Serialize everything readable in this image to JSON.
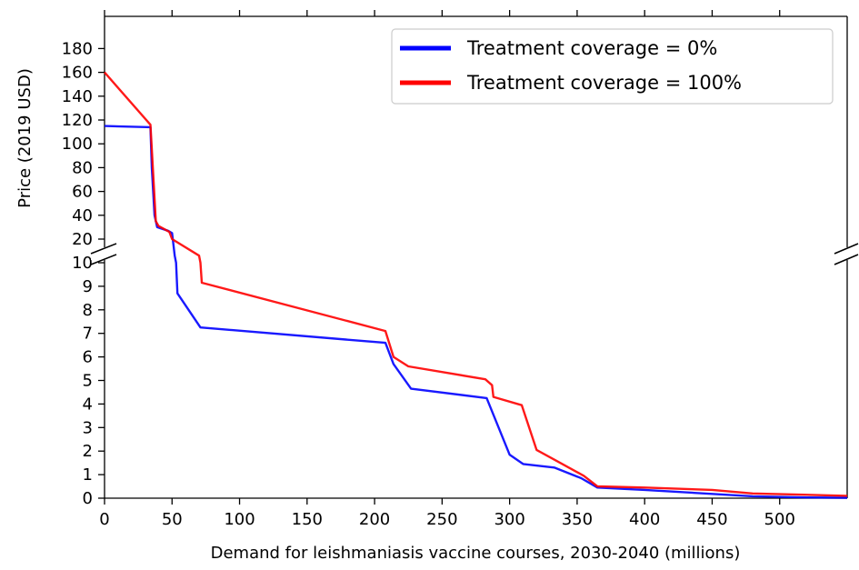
{
  "chart_data": {
    "type": "line",
    "title": "",
    "xlabel": "Demand for leishmaniasis vaccine courses, 2030-2040 (millions)",
    "ylabel": "Price (2019 USD)",
    "xlim": [
      0,
      550
    ],
    "x_ticks": [
      0,
      50,
      100,
      150,
      200,
      250,
      300,
      350,
      400,
      450,
      500
    ],
    "broken_y_axis": true,
    "y_lower_range": [
      0,
      10
    ],
    "y_upper_range": [
      10,
      200
    ],
    "y_lower_ticks": [
      0,
      1,
      2,
      3,
      4,
      5,
      6,
      7,
      8,
      9,
      10
    ],
    "y_upper_ticks": [
      20,
      40,
      60,
      80,
      100,
      120,
      140,
      160,
      180
    ],
    "grid": false,
    "legend_position": "top-right",
    "series": [
      {
        "name": "Treatment coverage = 0%",
        "color": "#0000ff",
        "points": [
          [
            0,
            115
          ],
          [
            34,
            114
          ],
          [
            35,
            80
          ],
          [
            37,
            40
          ],
          [
            39,
            30
          ],
          [
            47,
            27
          ],
          [
            50,
            25
          ],
          [
            52,
            13
          ],
          [
            53,
            10
          ],
          [
            54,
            8.7
          ],
          [
            71,
            7.25
          ],
          [
            208,
            6.6
          ],
          [
            214,
            5.7
          ],
          [
            227,
            4.65
          ],
          [
            283,
            4.25
          ],
          [
            300,
            1.85
          ],
          [
            310,
            1.45
          ],
          [
            333,
            1.3
          ],
          [
            353,
            0.85
          ],
          [
            365,
            0.45
          ],
          [
            400,
            0.35
          ],
          [
            450,
            0.18
          ],
          [
            480,
            0.08
          ],
          [
            520,
            0.03
          ],
          [
            550,
            0.02
          ]
        ]
      },
      {
        "name": "Treatment coverage = 100%",
        "color": "#ff0000",
        "points": [
          [
            0,
            160
          ],
          [
            34,
            116
          ],
          [
            36,
            75
          ],
          [
            38,
            35
          ],
          [
            40,
            31
          ],
          [
            48,
            26
          ],
          [
            50,
            20
          ],
          [
            70,
            13
          ],
          [
            71,
            10
          ],
          [
            72,
            9.15
          ],
          [
            208,
            7.1
          ],
          [
            214,
            6.0
          ],
          [
            225,
            5.6
          ],
          [
            282,
            5.05
          ],
          [
            287,
            4.8
          ],
          [
            288,
            4.3
          ],
          [
            309,
            3.95
          ],
          [
            320,
            2.05
          ],
          [
            355,
            0.95
          ],
          [
            365,
            0.5
          ],
          [
            400,
            0.45
          ],
          [
            450,
            0.35
          ],
          [
            480,
            0.2
          ],
          [
            550,
            0.1
          ]
        ]
      }
    ]
  }
}
